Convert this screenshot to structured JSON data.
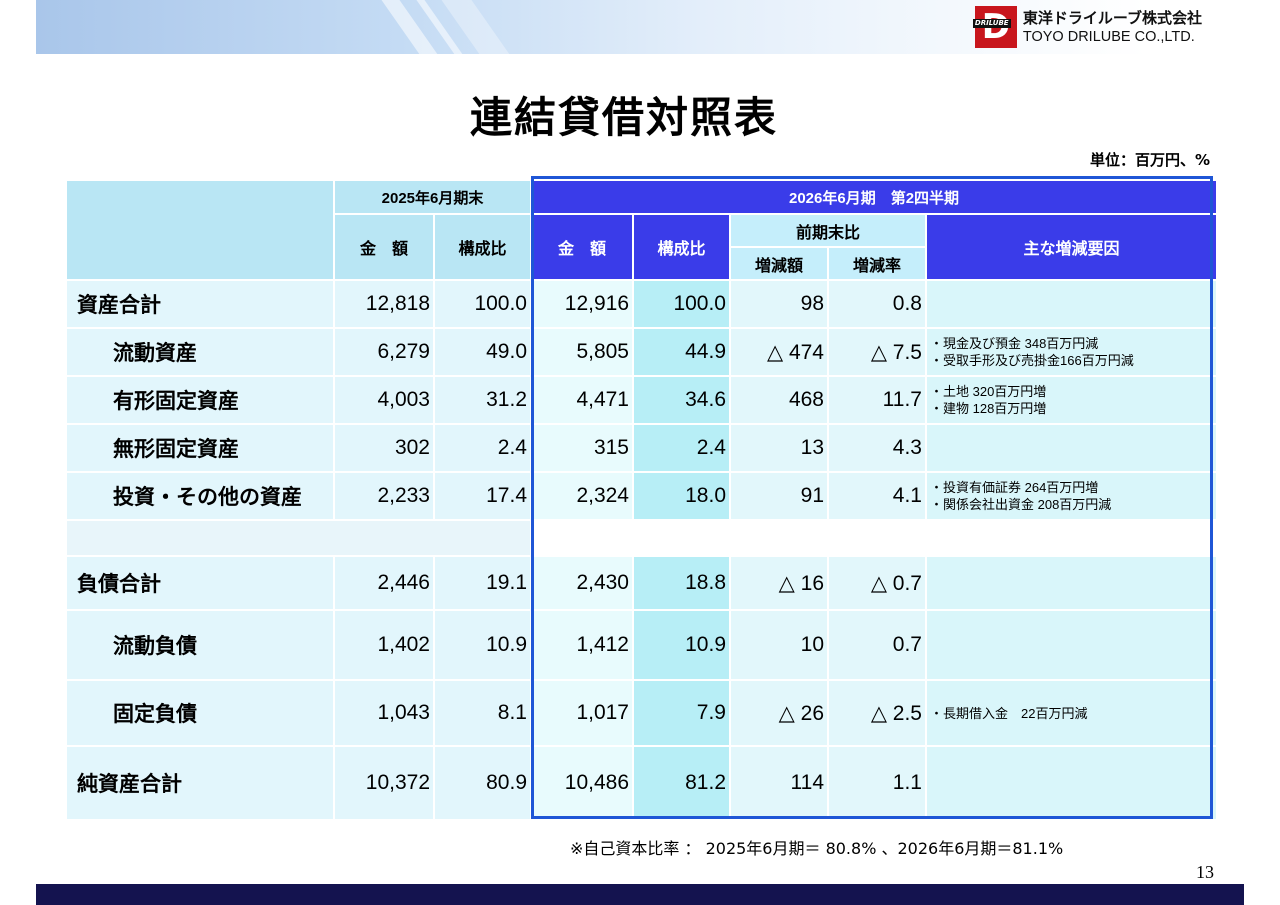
{
  "company": {
    "logo_mark_text": "DRILUBE",
    "name_jp": "東洋ドライルーブ株式会社",
    "name_en": "TOYO DRILUBE CO.,LTD."
  },
  "title": "連結貸借対照表",
  "unit": "単位：百万円、%",
  "table": {
    "prior_period": "2025年6月期末",
    "current_period": "2026年6月期　第2四半期",
    "col_amount": "金　額",
    "col_amount_new": "金　額",
    "col_ratio": "構成比",
    "col_vs_prior": "前期末比",
    "col_change_amount": "増減額",
    "col_change_rate": "増減率",
    "col_reason": "主な増減要因",
    "rows": [
      {
        "label": "資産合計",
        "prior_amount": "12,818",
        "prior_ratio": "100.0",
        "amount": "12,916",
        "ratio": "100.0",
        "change": "98",
        "rate": "0.8",
        "reasons": []
      },
      {
        "label": "流動資産",
        "prior_amount": "6,279",
        "prior_ratio": "49.0",
        "amount": "5,805",
        "ratio": "44.9",
        "change": "△ 474",
        "rate": "△ 7.5",
        "reasons": [
          "・現金及び預金 348百万円減",
          "・受取手形及び売掛金166百万円減"
        ]
      },
      {
        "label": "有形固定資産",
        "prior_amount": "4,003",
        "prior_ratio": "31.2",
        "amount": "4,471",
        "ratio": "34.6",
        "change": "468",
        "rate": "11.7",
        "reasons": [
          "・土地 320百万円増",
          "・建物 128百万円増"
        ]
      },
      {
        "label": "無形固定資産",
        "prior_amount": "302",
        "prior_ratio": "2.4",
        "amount": "315",
        "ratio": "2.4",
        "change": "13",
        "rate": "4.3",
        "reasons": []
      },
      {
        "label": "投資・その他の資産",
        "prior_amount": "2,233",
        "prior_ratio": "17.4",
        "amount": "2,324",
        "ratio": "18.0",
        "change": "91",
        "rate": "4.1",
        "reasons": [
          "・投資有価証券 264百万円増",
          "・関係会社出資金 208百万円減"
        ]
      },
      {
        "label": "負債合計",
        "prior_amount": "2,446",
        "prior_ratio": "19.1",
        "amount": "2,430",
        "ratio": "18.8",
        "change": "△ 16",
        "rate": "△ 0.7",
        "reasons": []
      },
      {
        "label": "流動負債",
        "prior_amount": "1,402",
        "prior_ratio": "10.9",
        "amount": "1,412",
        "ratio": "10.9",
        "change": "10",
        "rate": "0.7",
        "reasons": []
      },
      {
        "label": "固定負債",
        "prior_amount": "1,043",
        "prior_ratio": "8.1",
        "amount": "1,017",
        "ratio": "7.9",
        "change": "△ 26",
        "rate": "△ 2.5",
        "reasons": [
          "・長期借入金　22百万円減"
        ]
      },
      {
        "label": "純資産合計",
        "prior_amount": "10,372",
        "prior_ratio": "80.9",
        "amount": "10,486",
        "ratio": "81.2",
        "change": "114",
        "rate": "1.1",
        "reasons": []
      }
    ]
  },
  "footnote": "※自己資本比率 ： 2025年6月期＝ 80.8% 、2026年6月期＝81.1%",
  "page_number": "13"
}
